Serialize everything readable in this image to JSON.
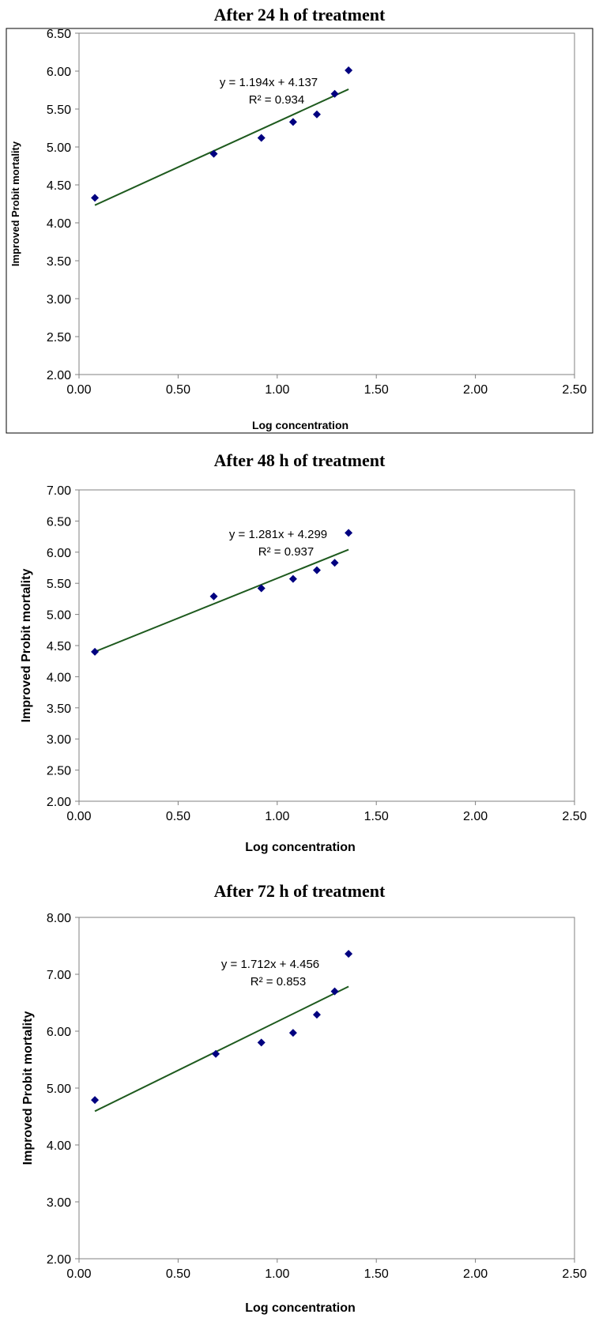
{
  "chart_data": [
    {
      "type": "scatter",
      "title": "After 24 h of treatment",
      "xlabel": "Log concentration",
      "ylabel": "Improved Probit mortality",
      "xlim": [
        0,
        2.5
      ],
      "ylim": [
        2,
        6.5
      ],
      "x_ticks": [
        "0.00",
        "0.50",
        "1.00",
        "1.50",
        "2.00",
        "2.50"
      ],
      "y_ticks": [
        "2.00",
        "2.50",
        "3.00",
        "3.50",
        "4.00",
        "4.50",
        "5.00",
        "5.50",
        "6.00",
        "6.50"
      ],
      "grid": false,
      "legend": "none",
      "marker_color": "#000080",
      "trendline_color": "#1e5a1e",
      "series": [
        {
          "x": [
            0.08,
            0.68,
            0.92,
            1.08,
            1.2,
            1.29,
            1.36
          ],
          "y": [
            4.33,
            4.91,
            5.12,
            5.33,
            5.43,
            5.7,
            6.01
          ]
        }
      ],
      "trendline": {
        "slope": 1.194,
        "intercept": 4.137,
        "x_range": [
          0.08,
          1.36
        ]
      },
      "equation_text": "y = 1.194x + 4.137",
      "r2_text": "R² = 0.934"
    },
    {
      "type": "scatter",
      "title": "After 48 h of treatment",
      "xlabel": "Log concentration",
      "ylabel": "Improved Probit mortality",
      "xlim": [
        0,
        2.5
      ],
      "ylim": [
        2,
        7
      ],
      "x_ticks": [
        "0.00",
        "0.50",
        "1.00",
        "1.50",
        "2.00",
        "2.50"
      ],
      "y_ticks": [
        "2.00",
        "2.50",
        "3.00",
        "3.50",
        "4.00",
        "4.50",
        "5.00",
        "5.50",
        "6.00",
        "6.50",
        "7.00"
      ],
      "grid": false,
      "legend": "none",
      "marker_color": "#000080",
      "trendline_color": "#1e5a1e",
      "series": [
        {
          "x": [
            0.08,
            0.68,
            0.92,
            1.08,
            1.2,
            1.29,
            1.36
          ],
          "y": [
            4.4,
            5.29,
            5.42,
            5.57,
            5.71,
            5.83,
            6.31
          ]
        }
      ],
      "trendline": {
        "slope": 1.281,
        "intercept": 4.299,
        "x_range": [
          0.08,
          1.36
        ]
      },
      "equation_text": "y = 1.281x + 4.299",
      "r2_text": "R² = 0.937"
    },
    {
      "type": "scatter",
      "title": "After 72 h of treatment",
      "xlabel": "Log concentration",
      "ylabel": "Improved Probit mortality",
      "xlim": [
        0,
        2.5
      ],
      "ylim": [
        2,
        8
      ],
      "x_ticks": [
        "0.00",
        "0.50",
        "1.00",
        "1.50",
        "2.00",
        "2.50"
      ],
      "y_ticks": [
        "2.00",
        "3.00",
        "4.00",
        "5.00",
        "6.00",
        "7.00",
        "8.00"
      ],
      "grid": false,
      "legend": "none",
      "marker_color": "#000080",
      "trendline_color": "#1e5a1e",
      "series": [
        {
          "x": [
            0.08,
            0.69,
            0.92,
            1.08,
            1.2,
            1.29,
            1.36
          ],
          "y": [
            4.79,
            5.6,
            5.8,
            5.97,
            6.29,
            6.7,
            7.36
          ]
        }
      ],
      "trendline": {
        "slope": 1.712,
        "intercept": 4.456,
        "x_range": [
          0.08,
          1.36
        ]
      },
      "equation_text": "y = 1.712x + 4.456",
      "r2_text": "R² = 0.853"
    }
  ]
}
